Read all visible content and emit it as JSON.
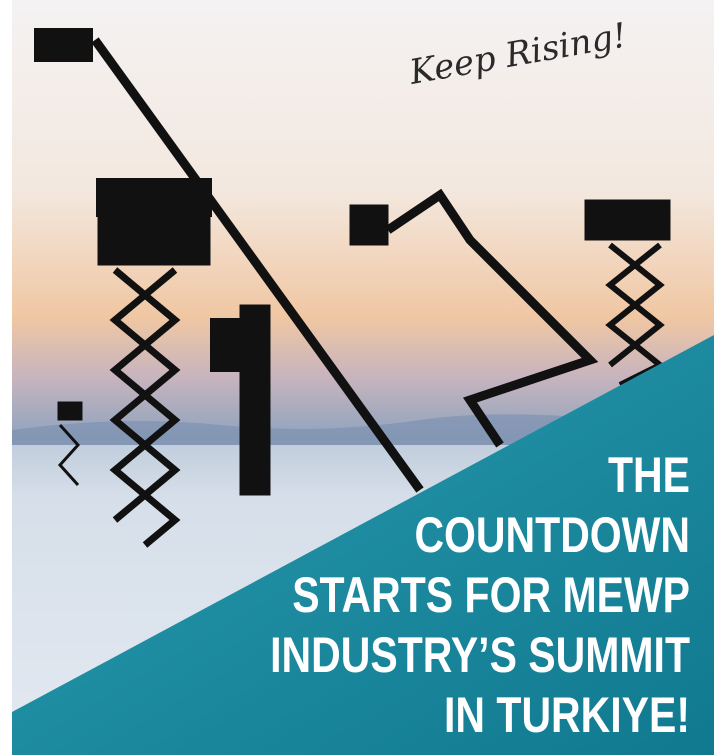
{
  "tagline": "Keep Rising!",
  "headline": [
    "THE",
    "COUNTDOWN",
    "STARTS FOR MEWP",
    "INDUSTRY’S SUMMIT",
    "IN TURKIYE!"
  ]
}
